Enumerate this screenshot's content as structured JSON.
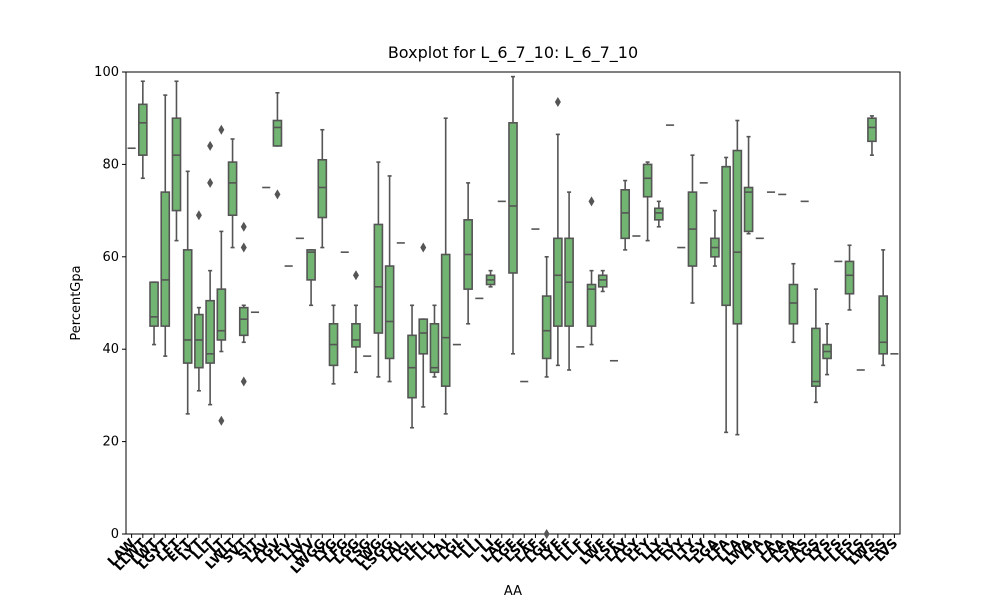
{
  "chart_data": {
    "type": "box",
    "title": "Boxplot for L_6_7_10: L_6_7_10",
    "xlabel": "AA",
    "ylabel": "PercentGpa",
    "ylim": [
      0,
      100
    ],
    "yticks": [
      0,
      20,
      40,
      60,
      80,
      100
    ],
    "color": "#72b472",
    "edgecolor": "#555555",
    "categories": [
      "LAW",
      "LLWT",
      "LWT",
      "LGYT",
      "LFT",
      "EFT",
      "LYT",
      "LLT",
      "LT",
      "LWLT",
      "SVT",
      "SIT",
      "LAV",
      "LGV",
      "LFV",
      "LLV",
      "LYV",
      "LWGG",
      "LYG",
      "LFG",
      "LGG",
      "LSG",
      "LWG",
      "LSGG",
      "LAL",
      "LGL",
      "LFL",
      "LLL",
      "LAI",
      "LGI",
      "LFI",
      "LLI",
      "LI",
      "LAE",
      "LGE",
      "LSE",
      "LAF",
      "LGF",
      "LYF",
      "LFF",
      "LLF",
      "LF",
      "LWF",
      "LSF",
      "LAY",
      "LGY",
      "LFY",
      "LLY",
      "LEY",
      "LYY",
      "LTY",
      "LSY",
      "LGA",
      "LFA",
      "LLA",
      "LWA",
      "LTA",
      "LA",
      "LAA",
      "LSA",
      "LAS",
      "LGS",
      "LYS",
      "LFS",
      "LES",
      "LLS",
      "LWS",
      "LSS",
      "LVS"
    ],
    "stats": [
      [
        83.5
      ],
      [
        77,
        82,
        89,
        93,
        98
      ],
      [
        41,
        45,
        47,
        54.5,
        54.5
      ],
      [
        38.5,
        45,
        55,
        74,
        95
      ],
      [
        63.5,
        70,
        82,
        90,
        98
      ],
      [
        26,
        37,
        42,
        61.5,
        78.5
      ],
      [
        31,
        36,
        42,
        47.5,
        49
      ],
      [
        28,
        37,
        39,
        50.5,
        57
      ],
      [
        39.5,
        42,
        44,
        53,
        65.5
      ],
      [
        62,
        69,
        76,
        80.5,
        85.5
      ],
      [
        41.5,
        43,
        46.5,
        49,
        49.5
      ],
      [
        48
      ],
      [
        75
      ],
      [
        84,
        84,
        88,
        89.5,
        95.5
      ],
      [
        58
      ],
      [
        64
      ],
      [
        49.5,
        55,
        61,
        61.5,
        61.5
      ],
      [
        62,
        68.5,
        75,
        81,
        87.5
      ],
      [
        32.5,
        36.5,
        41,
        45.5,
        49.5
      ],
      [
        61
      ],
      [
        35,
        40.5,
        42,
        45.5,
        49.5
      ],
      [
        38.5
      ],
      [
        34,
        43.5,
        53.5,
        67,
        80.5
      ],
      [
        33,
        38,
        46,
        58,
        77.5
      ],
      [
        63
      ],
      [
        23,
        29.5,
        36,
        43,
        49.5
      ],
      [
        27.5,
        39,
        43.5,
        46.5,
        46.5
      ],
      [
        34,
        35,
        36,
        45.5,
        49.5
      ],
      [
        26,
        32,
        42.5,
        60.5,
        90
      ],
      [
        41
      ],
      [
        45.5,
        53,
        60.5,
        68,
        76
      ],
      [
        51
      ],
      [
        53.5,
        54,
        55,
        56,
        57
      ],
      [
        72
      ],
      [
        39,
        56.5,
        71,
        89,
        99
      ],
      [
        33
      ],
      [
        66
      ],
      [
        34,
        38,
        44,
        51.5,
        60
      ],
      [
        36.5,
        45,
        56,
        64,
        86.5
      ],
      [
        35.5,
        45,
        54.5,
        64,
        74
      ],
      [
        40.5
      ],
      [
        41,
        45,
        53,
        54,
        57
      ],
      [
        52.5,
        53.5,
        55,
        56,
        57
      ],
      [
        37.5
      ],
      [
        61.5,
        64,
        69.5,
        74.5,
        76.5
      ],
      [
        64.5
      ],
      [
        63.5,
        73,
        77,
        80,
        80.5
      ],
      [
        66.5,
        68,
        69.5,
        70.5,
        72
      ],
      [
        88.5
      ],
      [
        62
      ],
      [
        50,
        58,
        66,
        74,
        82
      ],
      [
        76
      ],
      [
        58,
        60,
        62,
        64,
        70
      ],
      [
        22,
        49.5,
        79.5,
        79.5,
        81.5
      ],
      [
        21.5,
        45.5,
        61,
        83,
        89.5
      ],
      [
        65,
        65.5,
        74,
        75,
        86
      ],
      [
        64
      ],
      [
        74
      ],
      [
        73.5
      ],
      [
        41.5,
        45.5,
        50,
        54,
        58.5
      ],
      [
        72
      ],
      [
        28.5,
        32,
        33,
        44.5,
        53
      ],
      [
        34.5,
        38,
        39.5,
        41,
        45.5
      ],
      [
        59
      ],
      [
        48.5,
        52,
        56,
        59,
        62.5
      ],
      [
        35.5
      ],
      [
        82,
        85,
        88,
        90,
        90.5
      ],
      [
        36.5,
        39,
        41.5,
        51.5,
        61.5
      ],
      [
        39
      ]
    ],
    "fliers": [
      [],
      [],
      [],
      [],
      [],
      [],
      [
        69
      ],
      [
        76,
        84
      ],
      [
        24.5,
        87.5
      ],
      [],
      [
        33,
        62,
        66.5
      ],
      [],
      [],
      [
        73.5
      ],
      [],
      [],
      [],
      [],
      [],
      [],
      [
        56
      ],
      [],
      [],
      [],
      [],
      [],
      [
        62
      ],
      [],
      [],
      [],
      [],
      [],
      [],
      [],
      [],
      [],
      [],
      [
        0
      ],
      [
        93.5
      ],
      [],
      [],
      [
        72
      ],
      [],
      [],
      [],
      [],
      [],
      [],
      [],
      [],
      [],
      [],
      [],
      [],
      [],
      [],
      [],
      [],
      [],
      [],
      [],
      [],
      [],
      [],
      [],
      [],
      [],
      [],
      []
    ]
  }
}
